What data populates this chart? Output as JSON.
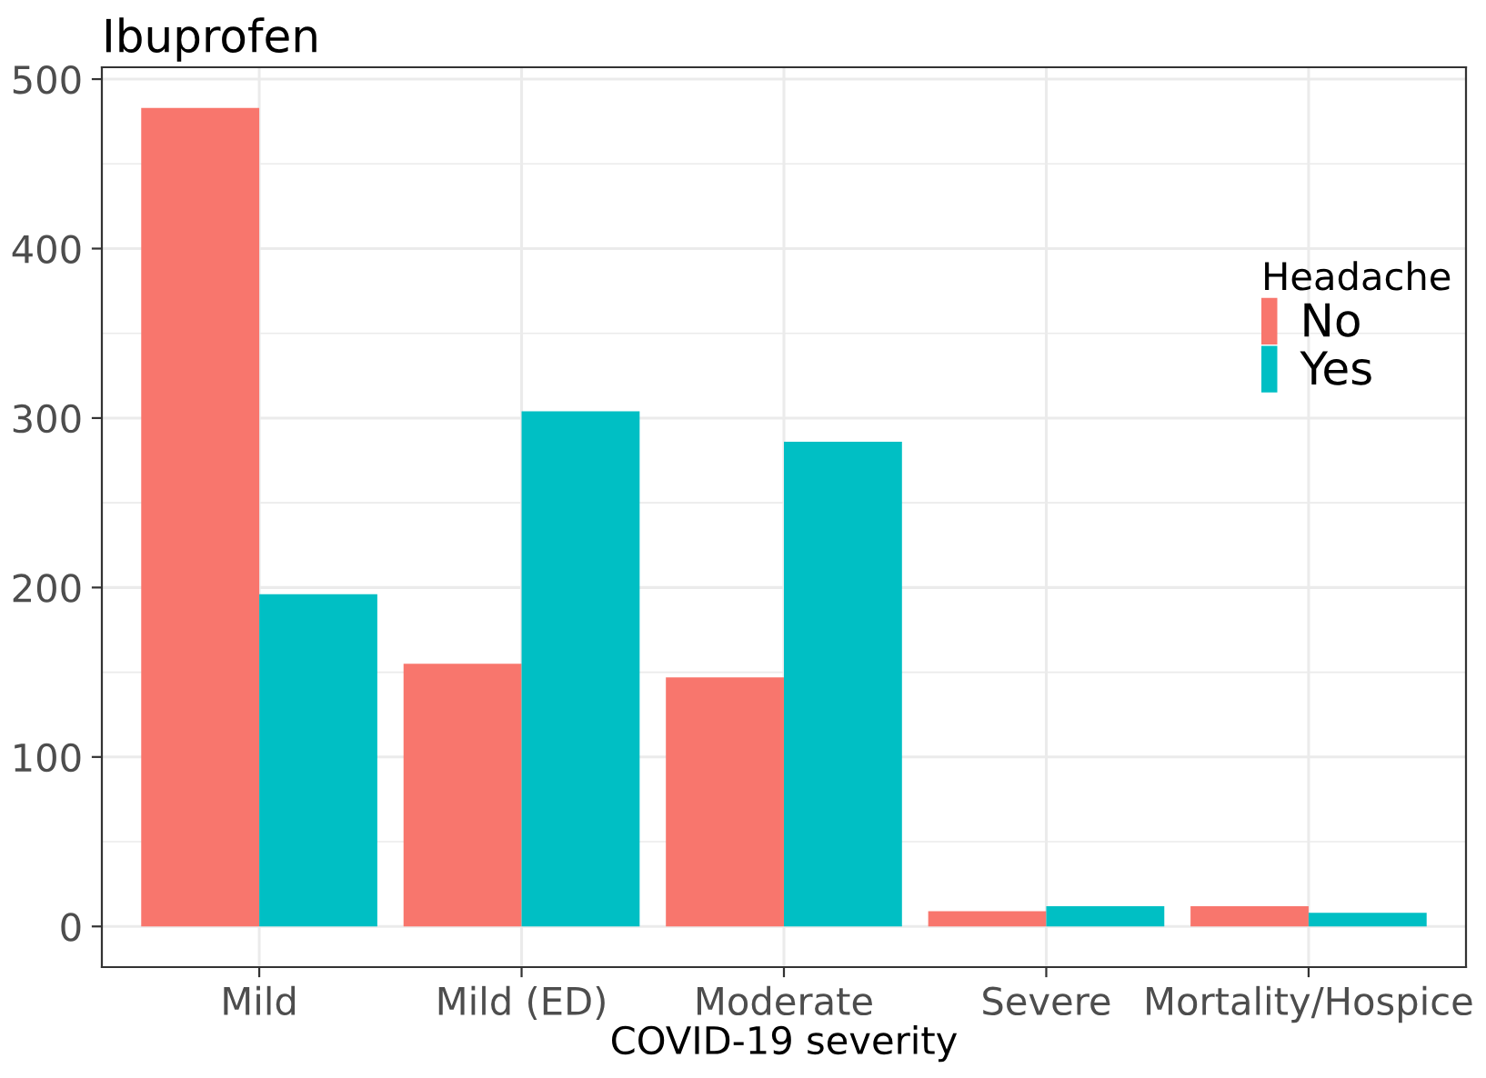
{
  "chart_data": {
    "type": "bar",
    "title": "Ibuprofen",
    "xlabel": "COVID-19 severity",
    "legend_title": "Headache",
    "categories": [
      "Mild",
      "Mild (ED)",
      "Moderate",
      "Severe",
      "Mortality/Hospice"
    ],
    "series": [
      {
        "name": "No",
        "color": "#f8766d",
        "values": [
          483,
          155,
          147,
          9,
          12
        ]
      },
      {
        "name": "Yes",
        "color": "#00bfc4",
        "values": [
          196,
          304,
          286,
          12,
          8
        ]
      }
    ],
    "ylim": [
      -24,
      507
    ],
    "yticks": [
      0,
      100,
      200,
      300,
      400,
      500
    ],
    "grid": true,
    "legend": "top right"
  }
}
